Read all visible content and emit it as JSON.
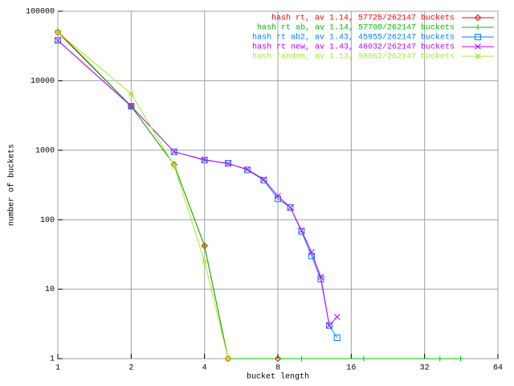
{
  "chart_data": {
    "type": "line",
    "x_label": "bucket length",
    "y_label": "number of buckets",
    "log_x": true,
    "log_y": true,
    "grid": true,
    "xlim": [
      1,
      64
    ],
    "xticks": [
      1,
      2,
      4,
      8,
      16,
      32,
      64
    ],
    "ylim": [
      1,
      100000
    ],
    "yticks": [
      1,
      10,
      100,
      1000,
      10000,
      100000
    ],
    "legend": "top-right",
    "series": [
      {
        "name": "hash rt, av 1.14, 57725/262147 buckets",
        "color": "#ff0000",
        "marker": "diamond",
        "x": [
          1,
          2,
          3,
          4,
          5,
          8
        ],
        "values": [
          50000,
          4300,
          620,
          42,
          1,
          1
        ]
      },
      {
        "name": "hash rt ab, av 1.14, 57700/262147 buckets",
        "color": "#00c000",
        "marker": "plus",
        "x": [
          1,
          2,
          3,
          4,
          5,
          10,
          18,
          37,
          45
        ],
        "values": [
          52000,
          4300,
          620,
          42,
          1,
          1,
          1,
          1,
          1
        ]
      },
      {
        "name": "hash rt ab2, av 1.43, 45955/262147 buckets",
        "color": "#0080ff",
        "marker": "square",
        "x": [
          1,
          2,
          3,
          4,
          5,
          6,
          7,
          8,
          9,
          10,
          11,
          12,
          13,
          14
        ],
        "values": [
          38000,
          4300,
          950,
          720,
          650,
          520,
          370,
          200,
          150,
          68,
          30,
          14,
          3,
          2
        ]
      },
      {
        "name": "hash rt new, av 1.43, 46032/262147 buckets",
        "color": "#c000ff",
        "marker": "cross",
        "x": [
          1,
          2,
          3,
          4,
          5,
          6,
          7,
          8,
          9,
          10,
          11,
          12,
          13,
          14
        ],
        "values": [
          38000,
          4300,
          950,
          730,
          640,
          530,
          380,
          220,
          150,
          70,
          34,
          15,
          3,
          4
        ]
      },
      {
        "name": "hash random, av 1.13, 58062/262147 buckets",
        "color": "#a8e830",
        "marker": "star",
        "x": [
          1,
          2,
          3,
          4,
          5
        ],
        "values": [
          50000,
          6500,
          600,
          25,
          1
        ]
      }
    ]
  }
}
